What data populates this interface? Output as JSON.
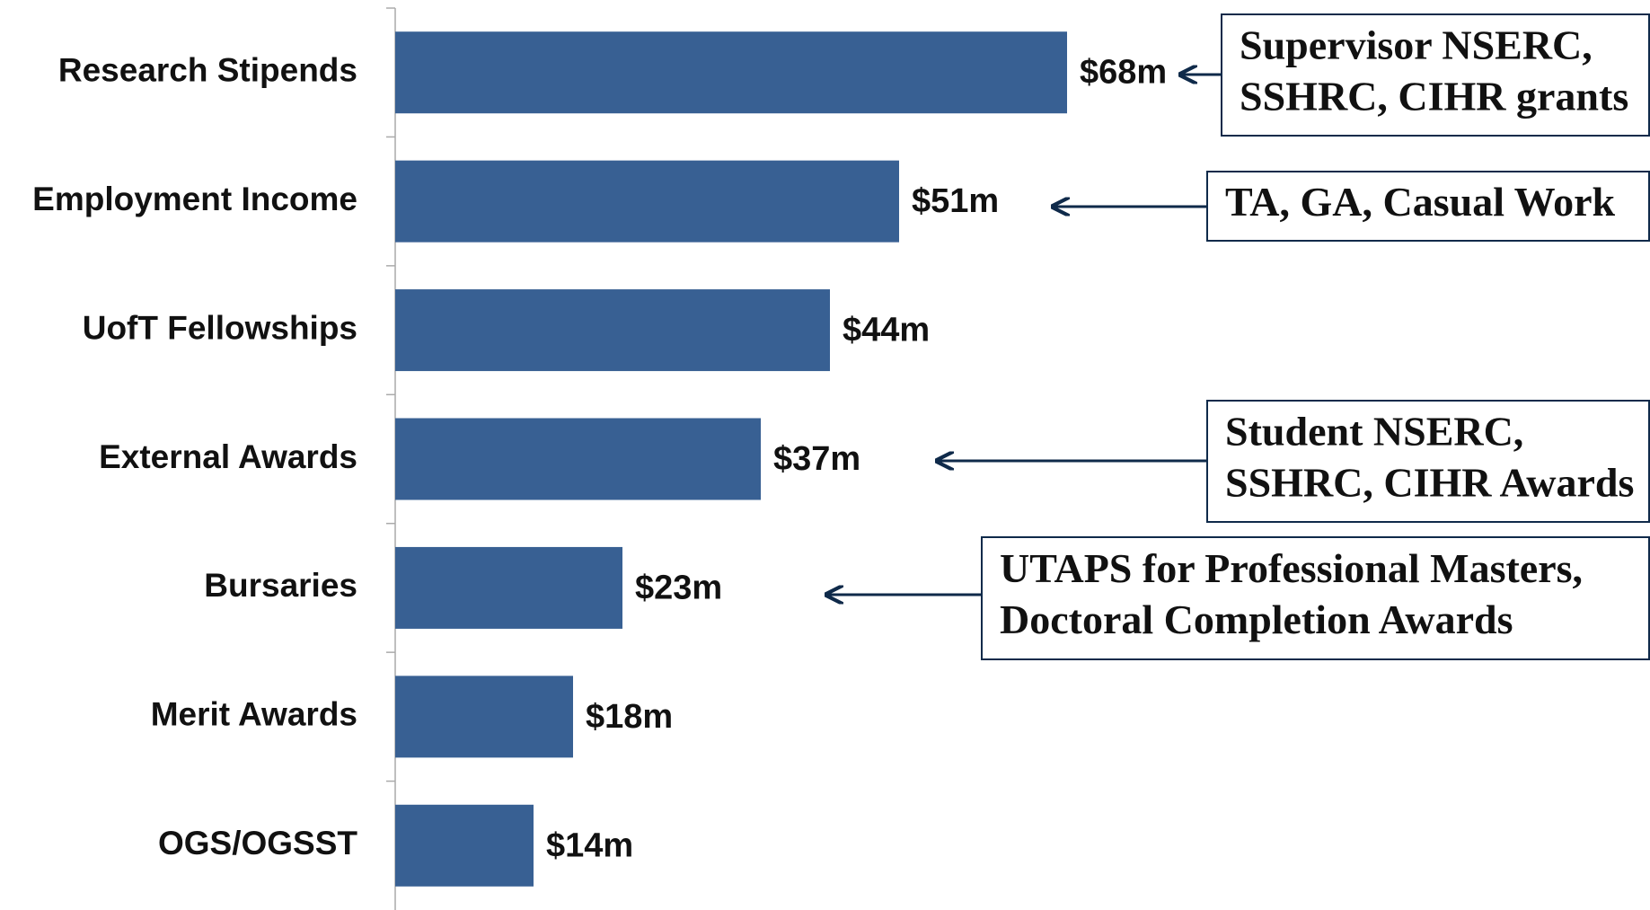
{
  "chart_data": {
    "type": "bar",
    "orientation": "horizontal",
    "categories": [
      "Research Stipends",
      "Employment Income",
      "UofT Fellowships",
      "External Awards",
      "Bursaries",
      "Merit Awards",
      "OGS/OGSST"
    ],
    "values": [
      68,
      51,
      44,
      37,
      23,
      18,
      14
    ],
    "value_labels": [
      "$68m",
      "$51m",
      "$44m",
      "$37m",
      "$23m",
      "$18m",
      "$14m"
    ],
    "color": "#386093",
    "annotations": [
      {
        "lines": [
          "Supervisor NSERC,",
          "SSHRC, CIHR grants"
        ]
      },
      {
        "lines": [
          "TA, GA, Casual Work"
        ]
      },
      {
        "lines": [
          "Student NSERC,",
          "SSHRC, CIHR Awards"
        ]
      },
      {
        "lines": [
          "UTAPS for Professional Masters,",
          "Doctoral Completion Awards"
        ]
      }
    ]
  }
}
